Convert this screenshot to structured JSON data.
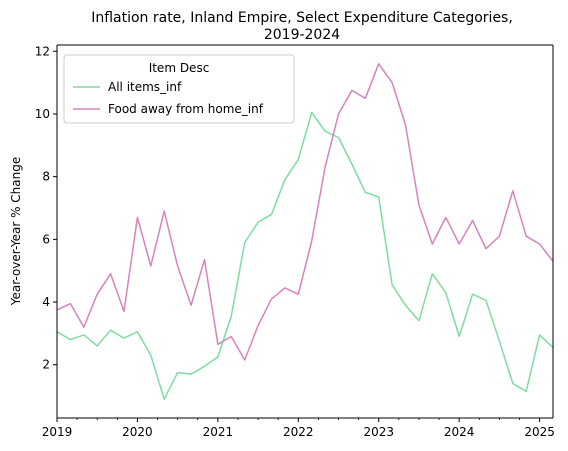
{
  "chart_data": {
    "type": "line",
    "title": [
      "Inflation rate, Inland Empire, Select Expenditure Categories,",
      "2019-2024"
    ],
    "xlabel": "",
    "ylabel": "Year-over-Year % Change",
    "xlim": [
      2019.0,
      2025.1667
    ],
    "ylim": [
      0.3,
      12.2
    ],
    "xticks": [
      {
        "value": 2019,
        "label": "2019"
      },
      {
        "value": 2020,
        "label": "2020"
      },
      {
        "value": 2021,
        "label": "2021"
      },
      {
        "value": 2022,
        "label": "2022"
      },
      {
        "value": 2023,
        "label": "2023"
      },
      {
        "value": 2024,
        "label": "2024"
      },
      {
        "value": 2025,
        "label": "2025"
      }
    ],
    "yticks": [
      2,
      4,
      6,
      8,
      10,
      12
    ],
    "grid": false,
    "legend": {
      "title": "Item Desc",
      "placement": "top-left"
    },
    "x": [
      "2019-01",
      "2019-03",
      "2019-05",
      "2019-07",
      "2019-09",
      "2019-11",
      "2020-01",
      "2020-03",
      "2020-05",
      "2020-07",
      "2020-09",
      "2020-11",
      "2021-01",
      "2021-03",
      "2021-05",
      "2021-07",
      "2021-09",
      "2021-11",
      "2022-01",
      "2022-03",
      "2022-05",
      "2022-07",
      "2022-09",
      "2022-11",
      "2023-01",
      "2023-03",
      "2023-05",
      "2023-07",
      "2023-09",
      "2023-11",
      "2024-01",
      "2024-03",
      "2024-05",
      "2024-07",
      "2024-09",
      "2024-11",
      "2025-01",
      "2025-03"
    ],
    "series": [
      {
        "name": "All items_inf",
        "color": "#7fdca0",
        "values": [
          3.05,
          2.8,
          2.95,
          2.6,
          3.1,
          2.85,
          3.05,
          2.3,
          0.9,
          1.75,
          1.7,
          1.95,
          2.25,
          3.55,
          5.9,
          6.55,
          6.8,
          7.9,
          8.55,
          10.05,
          9.45,
          9.25,
          8.4,
          7.5,
          7.35,
          4.55,
          3.9,
          3.4,
          4.9,
          4.3,
          2.9,
          4.25,
          4.05,
          2.75,
          1.4,
          1.15,
          2.95,
          2.55
        ]
      },
      {
        "name": "Food away from home_inf",
        "color": "#d883bd",
        "values": [
          3.75,
          3.95,
          3.2,
          4.25,
          4.9,
          3.7,
          6.7,
          5.15,
          6.9,
          5.15,
          3.9,
          5.35,
          2.65,
          2.9,
          2.15,
          3.25,
          4.1,
          4.45,
          4.25,
          5.95,
          8.3,
          10.0,
          10.75,
          10.5,
          11.6,
          11.0,
          9.65,
          7.1,
          5.85,
          6.7,
          5.85,
          6.6,
          5.7,
          6.1,
          7.55,
          6.1,
          5.85,
          5.3
        ]
      }
    ]
  }
}
